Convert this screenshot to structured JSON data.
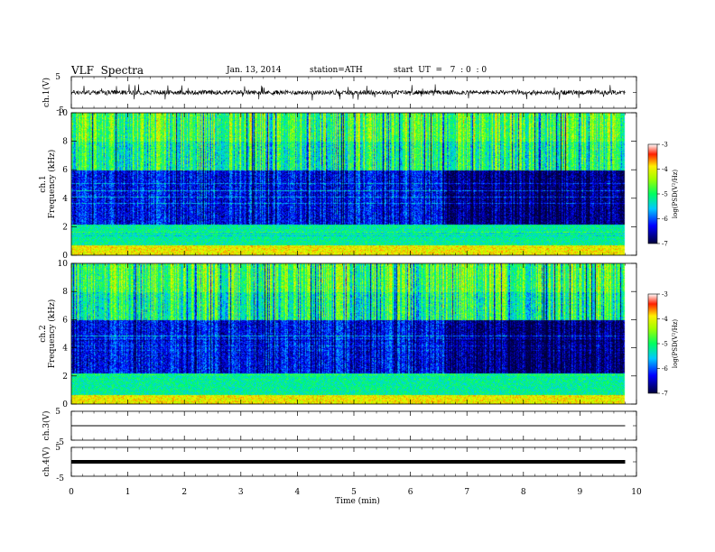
{
  "header": {
    "title": "VLF  Spectra",
    "date": "Jan. 13, 2014",
    "station": "station=ATH",
    "start": "start  UT  =   7  : 0  : 0"
  },
  "chart_data": [
    {
      "type": "line",
      "panel": "ch1-waveform",
      "ylabel": "ch.1(V)",
      "ylim": [
        -5,
        5
      ],
      "y_ticks": [
        "5",
        "-5"
      ],
      "x": [
        0,
        10
      ],
      "note_values": "dense noisy trace oscillating around 0 V with spikes up to about ±2.5 V"
    },
    {
      "type": "heatmap",
      "panel": "ch1-spectrogram",
      "ylabel_lines": [
        "ch.1",
        "Frequency  (kHz)"
      ],
      "ylim": [
        0,
        10
      ],
      "y_ticks": [
        "0",
        "2",
        "4",
        "6",
        "8",
        "10"
      ],
      "colorbar": {
        "label": "log(PSD(V²/Hz)",
        "range": [
          -7,
          -3
        ],
        "ticks": [
          "-3",
          "-4",
          "-5",
          "-6",
          "-7"
        ]
      }
    },
    {
      "type": "heatmap",
      "panel": "ch2-spectrogram",
      "ylabel_lines": [
        "ch.2",
        "Frequency  (kHz)"
      ],
      "ylim": [
        0,
        10
      ],
      "y_ticks": [
        "0",
        "2",
        "4",
        "6",
        "8",
        "10"
      ],
      "colorbar": {
        "label": "log(PSD(V²/Hz)",
        "range": [
          -7,
          -3
        ],
        "ticks": [
          "-3",
          "-4",
          "-5",
          "-6",
          "-7"
        ]
      }
    },
    {
      "type": "line",
      "panel": "ch3-waveform",
      "ylabel": "ch.3(V)",
      "ylim": [
        -5,
        5
      ],
      "y_ticks": [
        "5",
        "-5"
      ],
      "x": [
        0,
        9.8
      ],
      "y": [
        0,
        0
      ]
    },
    {
      "type": "line",
      "panel": "ch4-waveform",
      "ylabel": "ch.4(V)",
      "ylim": [
        -5,
        5
      ],
      "y_ticks": [
        "5",
        "-5"
      ],
      "x": [
        0,
        9.8
      ],
      "y": [
        0,
        0
      ]
    }
  ],
  "x_axis": {
    "label": "Time  (min)",
    "range": [
      0,
      10
    ],
    "ticks": [
      "0",
      "1",
      "2",
      "3",
      "4",
      "5",
      "6",
      "7",
      "8",
      "9",
      "10"
    ]
  }
}
